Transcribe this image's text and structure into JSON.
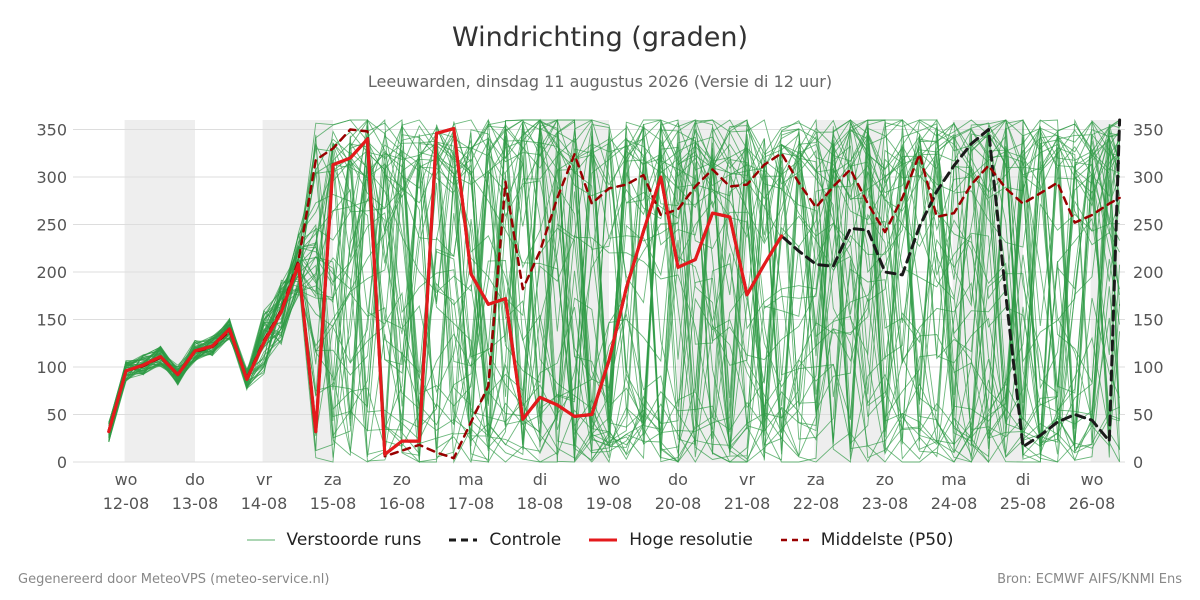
{
  "header": {
    "title": "Windrichting (graden)",
    "subtitle": "Leeuwarden, dinsdag 11 augustus 2026 (Versie di 12 uur)"
  },
  "footer": {
    "left": "Gegenereerd door MeteoVPS (meteo-service.nl)",
    "right": "Bron: ECMWF AIFS/KNMI Ens"
  },
  "colors": {
    "members": "#2e9a45",
    "control": "#1a1a1a",
    "hires": "#e41a1c",
    "median": "#990000",
    "shade": "#eeeeee",
    "grid": "#dddddd"
  },
  "chart_data": {
    "type": "line",
    "title": "Windrichting (graden)",
    "ylim": [
      0,
      360
    ],
    "yticks": [
      0,
      50,
      100,
      150,
      200,
      250,
      300,
      350
    ],
    "x_unit": "days since 12-08 00:00",
    "xlim": [
      -0.25,
      14.4
    ],
    "xticks": [
      {
        "day": "wo",
        "date": "12-08"
      },
      {
        "day": "do",
        "date": "13-08"
      },
      {
        "day": "vr",
        "date": "14-08"
      },
      {
        "day": "za",
        "date": "15-08"
      },
      {
        "day": "zo",
        "date": "16-08"
      },
      {
        "day": "ma",
        "date": "17-08"
      },
      {
        "day": "di",
        "date": "18-08"
      },
      {
        "day": "wo",
        "date": "19-08"
      },
      {
        "day": "do",
        "date": "20-08"
      },
      {
        "day": "vr",
        "date": "21-08"
      },
      {
        "day": "za",
        "date": "22-08"
      },
      {
        "day": "zo",
        "date": "23-08"
      },
      {
        "day": "ma",
        "date": "24-08"
      },
      {
        "day": "di",
        "date": "25-08"
      },
      {
        "day": "wo",
        "date": "26-08"
      }
    ],
    "shaded_ranges": [
      [
        -0.02,
        1.0
      ],
      [
        1.98,
        3.0
      ],
      [
        5.98,
        7.0
      ],
      [
        7.98,
        9.0
      ],
      [
        9.98,
        11.0
      ],
      [
        11.98,
        13.0
      ],
      [
        13.98,
        14.4
      ]
    ],
    "grid": true,
    "legend": {
      "position": "bottom",
      "labels": [
        "Verstoorde runs",
        "Controle",
        "Hoge resolutie",
        "Middelste (P50)"
      ]
    },
    "series": [
      {
        "name": "Hoge resolutie",
        "style": "solid",
        "x": [
          -0.25,
          -0.0,
          0.25,
          0.5,
          0.75,
          1.0,
          1.25,
          1.5,
          1.75,
          2.0,
          2.25,
          2.5,
          2.75,
          3.0,
          3.25,
          3.5,
          3.75,
          4.0,
          4.25,
          4.5,
          4.75,
          5.0,
          5.25,
          5.5,
          5.75,
          6.0,
          6.25,
          6.5,
          6.75,
          7.0,
          7.25,
          7.5,
          7.75,
          8.0,
          8.25,
          8.5,
          8.75,
          9.0,
          9.25,
          9.5,
          9.75,
          10.0
        ],
        "y": [
          32,
          96,
          102,
          111,
          92,
          117,
          122,
          140,
          87,
          126,
          158,
          208,
          32,
          313,
          320,
          340,
          8,
          22,
          22,
          346,
          351,
          198,
          166,
          172,
          45,
          68,
          60,
          48,
          50,
          107,
          183,
          243,
          300,
          205,
          213,
          262,
          258,
          176,
          208,
          238,
          null,
          null
        ]
      },
      {
        "name": "Controle",
        "style": "dashed",
        "x": [
          -0.25,
          -0.0,
          0.25,
          0.5,
          0.75,
          1.0,
          1.25,
          1.5,
          1.75,
          2.0,
          2.25,
          2.5,
          2.75,
          3.0,
          3.25,
          3.5,
          3.75,
          4.0,
          4.25,
          4.5,
          4.75,
          5.0,
          5.25,
          5.5,
          5.75,
          6.0,
          6.25,
          6.5,
          6.75,
          7.0,
          7.25,
          7.5,
          7.75,
          8.0,
          8.25,
          8.5,
          8.75,
          9.0,
          9.25,
          9.5,
          9.75,
          10.0,
          10.25,
          10.5,
          10.75,
          11.0,
          11.25,
          11.5,
          11.75,
          12.0,
          12.25,
          12.5,
          12.75,
          13.0,
          13.25,
          13.5,
          13.75,
          14.0,
          14.25,
          14.4
        ],
        "y": [
          32,
          96,
          102,
          111,
          92,
          117,
          122,
          140,
          87,
          126,
          158,
          208,
          32,
          313,
          320,
          340,
          8,
          22,
          22,
          346,
          351,
          198,
          166,
          172,
          45,
          68,
          60,
          48,
          50,
          107,
          183,
          243,
          300,
          205,
          213,
          262,
          258,
          176,
          208,
          238,
          222,
          208,
          206,
          246,
          244,
          200,
          197,
          248,
          285,
          312,
          335,
          350,
          176,
          16,
          28,
          42,
          50,
          44,
          22,
          360
        ]
      },
      {
        "name": "Middelste (P50)",
        "style": "dashed",
        "x": [
          -0.25,
          -0.0,
          0.25,
          0.5,
          0.75,
          1.0,
          1.25,
          1.5,
          1.75,
          2.0,
          2.25,
          2.5,
          2.75,
          3.0,
          3.25,
          3.5,
          3.75,
          4.0,
          4.25,
          4.5,
          4.75,
          5.0,
          5.25,
          5.5,
          5.75,
          6.0,
          6.25,
          6.5,
          6.75,
          7.0,
          7.25,
          7.5,
          7.75,
          8.0,
          8.25,
          8.5,
          8.75,
          9.0,
          9.25,
          9.5,
          9.75,
          10.0,
          10.25,
          10.5,
          10.75,
          11.0,
          11.25,
          11.5,
          11.75,
          12.0,
          12.25,
          12.5,
          12.75,
          13.0,
          13.25,
          13.5,
          13.75,
          14.0,
          14.25,
          14.4
        ],
        "y": [
          33,
          96,
          101,
          110,
          92,
          116,
          121,
          138,
          88,
          128,
          160,
          212,
          318,
          330,
          350,
          348,
          6,
          12,
          18,
          10,
          4,
          42,
          80,
          295,
          182,
          222,
          278,
          324,
          272,
          288,
          292,
          302,
          260,
          266,
          290,
          308,
          290,
          292,
          313,
          325,
          294,
          268,
          290,
          308,
          272,
          242,
          278,
          324,
          258,
          262,
          292,
          312,
          288,
          272,
          283,
          294,
          252,
          260,
          272,
          278
        ]
      }
    ],
    "ensemble_members": 50
  }
}
